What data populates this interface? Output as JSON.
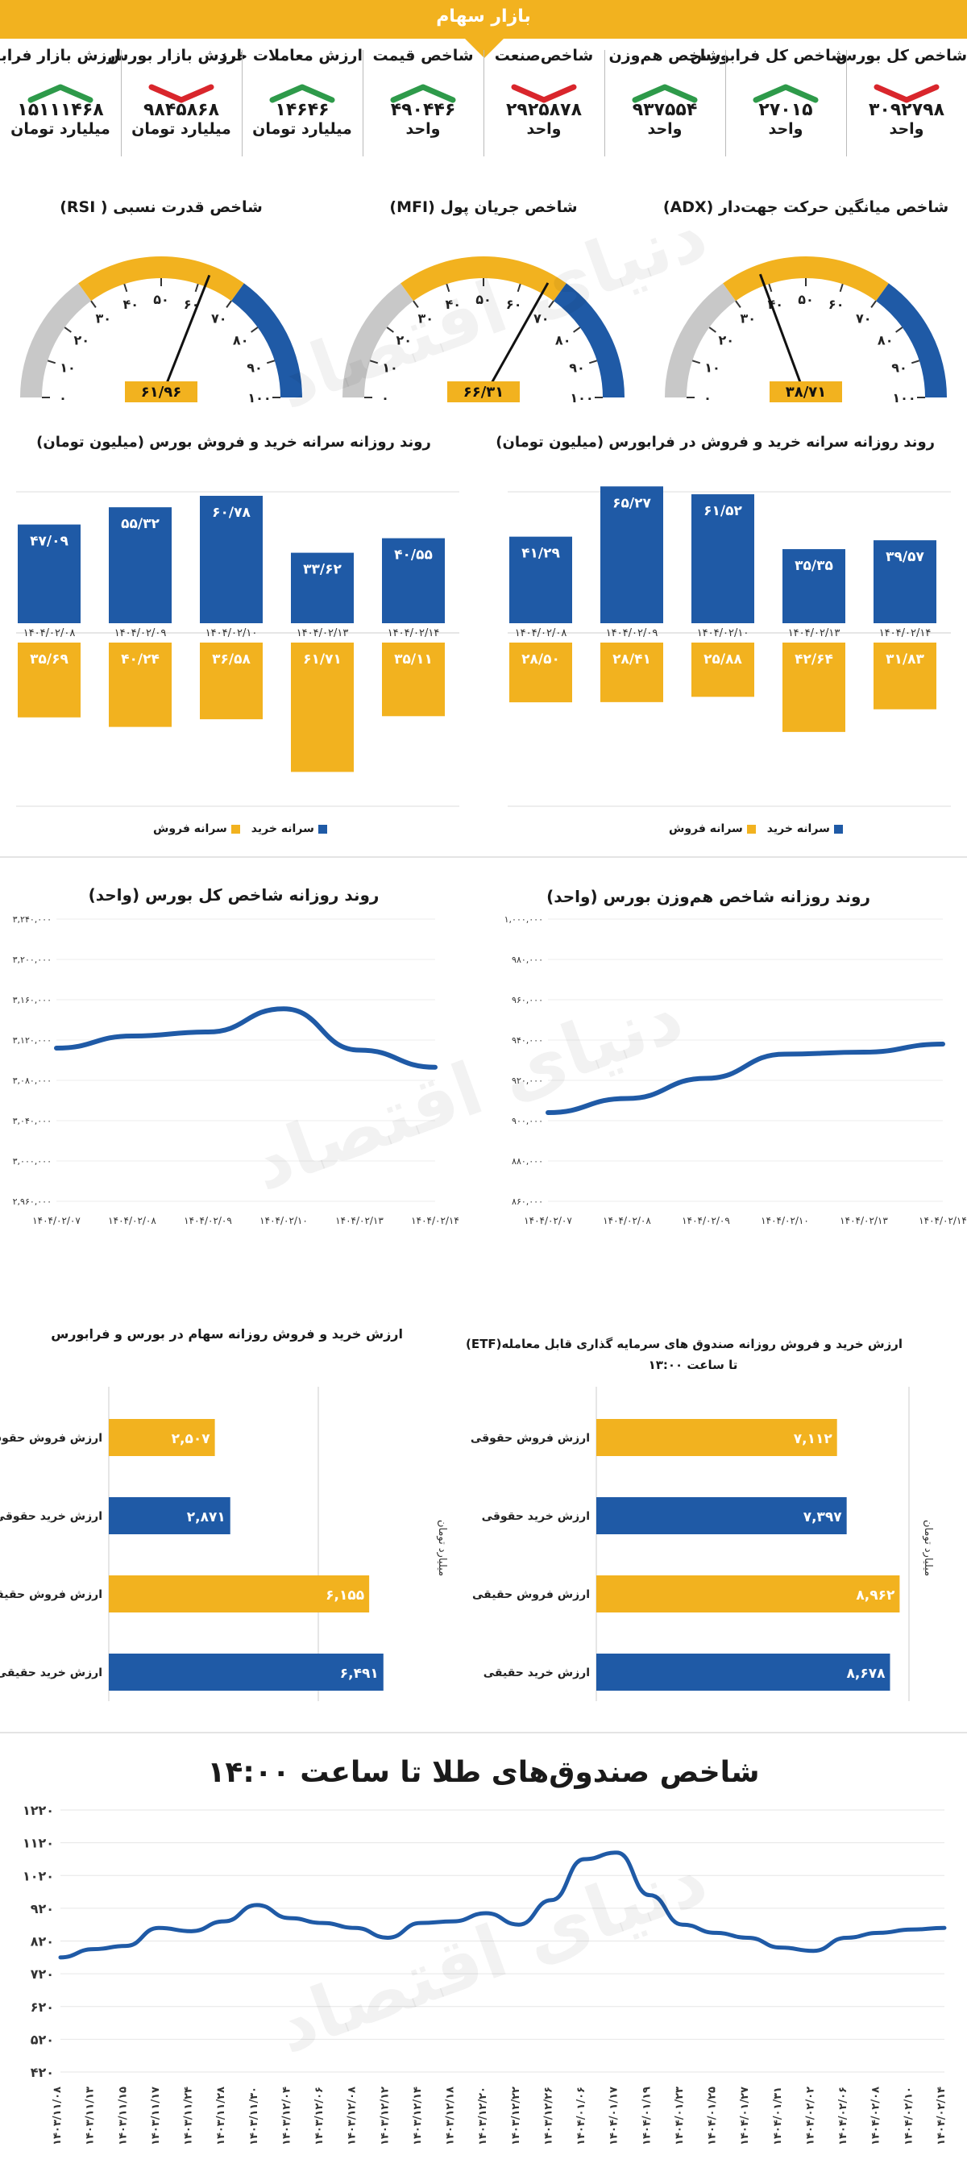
{
  "header": {
    "title": "بازار سهام"
  },
  "stats": [
    {
      "label": "شاخص کل بورس",
      "value": "۳۰۹۲۷۹۸",
      "unit": "واحد",
      "trend": "down"
    },
    {
      "label": "شاخص کل فرابورس",
      "value": "۲۷۰۱۵",
      "unit": "واحد",
      "trend": "up"
    },
    {
      "label": "شاخص هم‌وزن",
      "value": "۹۳۷۵۵۴",
      "unit": "واحد",
      "trend": "up"
    },
    {
      "label": "شاخص‌صنعت",
      "value": "۲۹۲۵۸۷۸",
      "unit": "واحد",
      "trend": "down"
    },
    {
      "label": "شاخص قیمت",
      "value": "۴۹۰۴۴۶",
      "unit": "واحد",
      "trend": "up"
    },
    {
      "label": "ارزش معاملات خرد",
      "value": "۱۴۶۴۶",
      "unit": "میلیارد تومان",
      "trend": "up"
    },
    {
      "label": "ارزش بازار بورس",
      "value": "۹۸۴۵۸۶۸",
      "unit": "میلیارد تومان",
      "trend": "down"
    },
    {
      "label": "ارزش بازار فرابورس",
      "value": "۱۵۱۱۱۴۶۸",
      "unit": "میلیارد تومان",
      "trend": "up"
    }
  ],
  "colors": {
    "accent": "#f2b21f",
    "blue": "#1f5aa6",
    "green": "#2e9a4a",
    "red": "#d9262c",
    "gray": "#c8c8c8"
  },
  "gauges": [
    {
      "title": "شاخص میانگین حرکت جهت‌دار (ADX)",
      "value": 38.71,
      "display": "۳۸/۷۱",
      "ticks": [
        "۰",
        "۱۰",
        "۲۰",
        "۳۰",
        "۴۰",
        "۵۰",
        "۶۰",
        "۷۰",
        "۸۰",
        "۹۰",
        "۱۰۰"
      ]
    },
    {
      "title": "شاخص جریان پول (MFI)",
      "value": 66.31,
      "display": "۶۶/۳۱",
      "ticks": [
        "۰",
        "۱۰",
        "۲۰",
        "۳۰",
        "۴۰",
        "۵۰",
        "۶۰",
        "۷۰",
        "۸۰",
        "۹۰",
        "۱۰۰"
      ]
    },
    {
      "title": "شاخص قدرت نسبی ( RSI)",
      "value": 61.96,
      "display": "۶۱/۹۶",
      "ticks": [
        "۰",
        "۱۰",
        "۲۰",
        "۳۰",
        "۴۰",
        "۵۰",
        "۶۰",
        "۷۰",
        "۸۰",
        "۹۰",
        "۱۰۰"
      ]
    }
  ],
  "chart_data": [
    {
      "type": "bar",
      "title": "روند روزانه سرانه خرید و فروش بورس (میلیون تومان)",
      "categories": [
        "۱۴۰۴/۰۲/۰۸",
        "۱۴۰۴/۰۲/۰۹",
        "۱۴۰۴/۰۲/۱۰",
        "۱۴۰۴/۰۲/۱۳",
        "۱۴۰۴/۰۲/۱۴"
      ],
      "series": [
        {
          "name": "سرانه خرید",
          "values": [
            47.09,
            55.32,
            60.78,
            33.62,
            40.55
          ],
          "labels": [
            "۴۷/۰۹",
            "۵۵/۳۲",
            "۶۰/۷۸",
            "۳۳/۶۲",
            "۴۰/۵۵"
          ]
        },
        {
          "name": "سرانه فروش",
          "values": [
            35.69,
            40.24,
            36.58,
            61.71,
            35.11
          ],
          "labels": [
            "۳۵/۶۹",
            "۴۰/۲۴",
            "۳۶/۵۸",
            "۶۱/۷۱",
            "۳۵/۱۱"
          ]
        }
      ],
      "legend": [
        "سرانه خرید",
        "سرانه فروش"
      ]
    },
    {
      "type": "bar",
      "title": "روند روزانه سرانه خرید و فروش در فرابورس (میلیون تومان)",
      "categories": [
        "۱۴۰۴/۰۲/۰۸",
        "۱۴۰۴/۰۲/۰۹",
        "۱۴۰۴/۰۲/۱۰",
        "۱۴۰۴/۰۲/۱۳",
        "۱۴۰۴/۰۲/۱۴"
      ],
      "series": [
        {
          "name": "سرانه خرید",
          "values": [
            41.29,
            65.27,
            61.52,
            35.35,
            39.57
          ],
          "labels": [
            "۴۱/۲۹",
            "۶۵/۲۷",
            "۶۱/۵۲",
            "۳۵/۳۵",
            "۳۹/۵۷"
          ]
        },
        {
          "name": "سرانه فروش",
          "values": [
            28.5,
            28.41,
            25.88,
            42.64,
            31.83
          ],
          "labels": [
            "۲۸/۵۰",
            "۲۸/۴۱",
            "۲۵/۸۸",
            "۴۲/۶۴",
            "۳۱/۸۳"
          ]
        }
      ],
      "legend": [
        "سرانه خرید",
        "سرانه فروش"
      ]
    },
    {
      "type": "line",
      "title": "روند روزانه شاخص کل بورس (واحد)",
      "x": [
        "۱۴۰۴/۰۲/۰۷",
        "۱۴۰۴/۰۲/۰۸",
        "۱۴۰۴/۰۲/۰۹",
        "۱۴۰۴/۰۲/۱۰",
        "۱۴۰۴/۰۲/۱۳",
        "۱۴۰۴/۰۲/۱۴"
      ],
      "values": [
        3112000,
        3124000,
        3128000,
        3151000,
        3110000,
        3093000
      ],
      "yticks": [
        "۲,۹۶۰,۰۰۰",
        "۳,۰۰۰,۰۰۰",
        "۳,۰۴۰,۰۰۰",
        "۳,۰۸۰,۰۰۰",
        "۳,۱۲۰,۰۰۰",
        "۳,۱۶۰,۰۰۰",
        "۳,۲۰۰,۰۰۰",
        "۳,۲۴۰,۰۰۰"
      ],
      "ylim": [
        2960000,
        3240000
      ]
    },
    {
      "type": "line",
      "title": "روند روزانه شاخص هم‌وزن بورس (واحد)",
      "x": [
        "۱۴۰۴/۰۲/۰۷",
        "۱۴۰۴/۰۲/۰۸",
        "۱۴۰۴/۰۲/۰۹",
        "۱۴۰۴/۰۲/۱۰",
        "۱۴۰۴/۰۲/۱۳",
        "۱۴۰۴/۰۲/۱۴"
      ],
      "values": [
        904000,
        911000,
        921000,
        933000,
        934000,
        938000
      ],
      "yticks": [
        "۸۶۰,۰۰۰",
        "۸۸۰,۰۰۰",
        "۹۰۰,۰۰۰",
        "۹۲۰,۰۰۰",
        "۹۴۰,۰۰۰",
        "۹۶۰,۰۰۰",
        "۹۸۰,۰۰۰",
        "۱,۰۰۰,۰۰۰"
      ],
      "ylim": [
        860000,
        1000000
      ]
    },
    {
      "type": "bar",
      "title": "ارزش خرید و فروش روزانه سهام در بورس و فرابورس",
      "unit": "میلیارد تومان",
      "categories": [
        "ارزش فروش حقوقی",
        "ارزش خرید حقوقی",
        "ارزش فروش حقیقی",
        "ارزش خرید حقیقی"
      ],
      "values": [
        2507,
        2871,
        6155,
        6491
      ],
      "labels": [
        "۲,۵۰۷",
        "۲,۸۷۱",
        "۶,۱۵۵",
        "۶,۴۹۱"
      ],
      "xlim": [
        0,
        8000
      ]
    },
    {
      "type": "bar",
      "title": "ارزش خرید و فروش روزانه صندوق های سرمایه گذاری قابل معامله(ETF)",
      "subtitle": "تا ساعت ۱۳:۰۰",
      "unit": "میلیارد تومان",
      "categories": [
        "ارزش فروش حقوقی",
        "ارزش خرید حقوقی",
        "ارزش فروش حقیقی",
        "ارزش خرید حقیقی"
      ],
      "values": [
        7112,
        7397,
        8962,
        8678
      ],
      "labels": [
        "۷,۱۱۲",
        "۷,۳۹۷",
        "۸,۹۶۲",
        "۸,۶۷۸"
      ],
      "xlim": [
        0,
        10000
      ]
    },
    {
      "type": "line",
      "title": "شاخص صندوق‌های طلا  تا ساعت ۱۴:۰۰",
      "x": [
        "۱۴۰۳/۱۱/۰۸",
        "۱۴۰۳/۱۱/۱۳",
        "۱۴۰۳/۱۱/۱۵",
        "۱۴۰۳/۱۱/۱۷",
        "۱۴۰۳/۱۱/۲۴",
        "۱۴۰۳/۱۱/۲۸",
        "۱۴۰۳/۱۱/۳۰",
        "۱۴۰۳/۱۲/۰۴",
        "۱۴۰۳/۱۲/۰۶",
        "۱۴۰۳/۱۲/۰۸",
        "۱۴۰۳/۱۲/۱۲",
        "۱۴۰۳/۱۲/۱۴",
        "۱۴۰۳/۱۲/۱۸",
        "۱۴۰۳/۱۲/۲۰",
        "۱۴۰۳/۱۲/۲۲",
        "۱۴۰۳/۱۲/۲۶",
        "۱۴۰۴/۰۱/۰۶",
        "۱۴۰۴/۰۱/۱۷",
        "۱۴۰۴/۰۱/۱۹",
        "۱۴۰۴/۰۱/۲۳",
        "۱۴۰۴/۰۱/۲۵",
        "۱۴۰۴/۰۱/۲۷",
        "۱۴۰۴/۰۱/۳۱",
        "۱۴۰۴/۰۲/۰۲",
        "۱۴۰۴/۰۲/۰۶",
        "۱۴۰۴/۰۲/۰۸",
        "۱۴۰۴/۰۲/۱۰",
        "۱۴۰۴/۰۲/۱۴"
      ],
      "values": [
        770,
        795,
        805,
        860,
        850,
        880,
        930,
        890,
        875,
        860,
        830,
        875,
        880,
        905,
        870,
        945,
        1070,
        1090,
        960,
        870,
        845,
        830,
        800,
        790,
        830,
        845,
        855,
        860
      ],
      "yticks": [
        "۴۲۰",
        "۵۲۰",
        "۶۲۰",
        "۷۲۰",
        "۸۲۰",
        "۹۲۰",
        "۱۰۲۰",
        "۱۱۲۰",
        "۱۲۲۰"
      ],
      "ylim": [
        420,
        1220
      ]
    }
  ]
}
